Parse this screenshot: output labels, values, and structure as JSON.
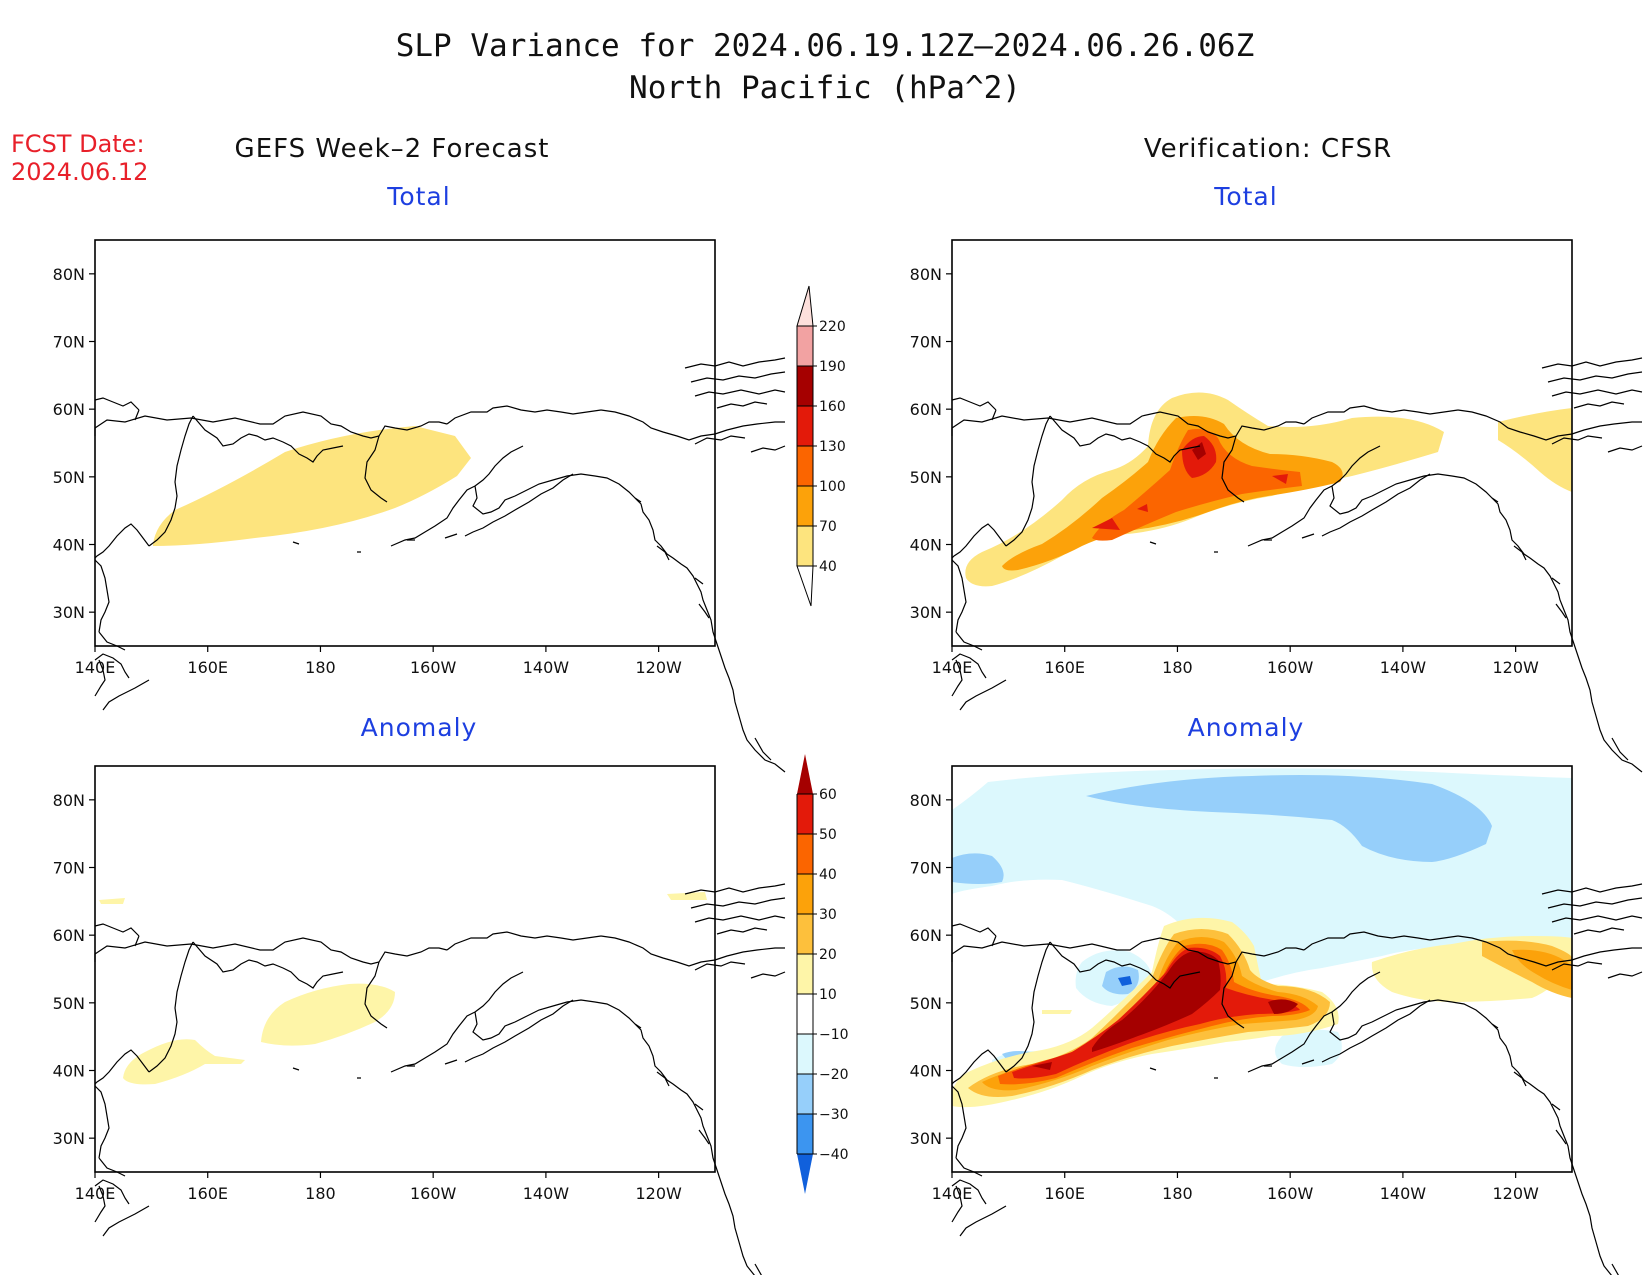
{
  "header": {
    "title_line1": "SLP Variance for 2024.06.19.12Z–2024.06.26.06Z",
    "title_line2": "North Pacific (hPa^2)",
    "fcst_label": "FCST Date:",
    "fcst_date": "2024.06.12"
  },
  "columns": {
    "left": "GEFS Week–2 Forecast",
    "right": "Verification: CFSR"
  },
  "panels": {
    "tl": "Total",
    "tr": "Total",
    "bl": "Anomaly",
    "br": "Anomaly"
  },
  "map_axes": {
    "lon_labels": [
      "140E",
      "160E",
      "180",
      "160W",
      "140W",
      "120W"
    ],
    "lon_values": [
      140,
      160,
      180,
      200,
      220,
      240
    ],
    "lat_labels": [
      "80N",
      "70N",
      "60N",
      "50N",
      "40N",
      "30N"
    ],
    "lat_values": [
      80,
      70,
      60,
      50,
      40,
      30
    ],
    "lon_range": [
      140,
      250
    ],
    "lat_range": [
      25,
      85
    ]
  },
  "colorbar_total": {
    "levels": [
      "40",
      "70",
      "100",
      "130",
      "160",
      "190",
      "220"
    ],
    "colors": [
      "#fde47e",
      "#fca20a",
      "#fb6500",
      "#e31a0a",
      "#a50000",
      "#f2a2a2",
      "#fde0dc"
    ]
  },
  "colorbar_anom": {
    "levels": [
      "60",
      "50",
      "40",
      "30",
      "20",
      "10",
      "−10",
      "−20",
      "−30",
      "−40"
    ],
    "colors_top_to_bottom": [
      "#a50000",
      "#e31a0a",
      "#fb6500",
      "#fca20a",
      "#fdc03c",
      "#fef5a8",
      "#ffffff",
      "#dcf8fd",
      "#96cffa",
      "#3c95f0",
      "#1060dc"
    ]
  },
  "colors": {
    "land_outline": "#000000",
    "title_blue": "#1d3fe0",
    "fcst_red": "#e8202a"
  }
}
